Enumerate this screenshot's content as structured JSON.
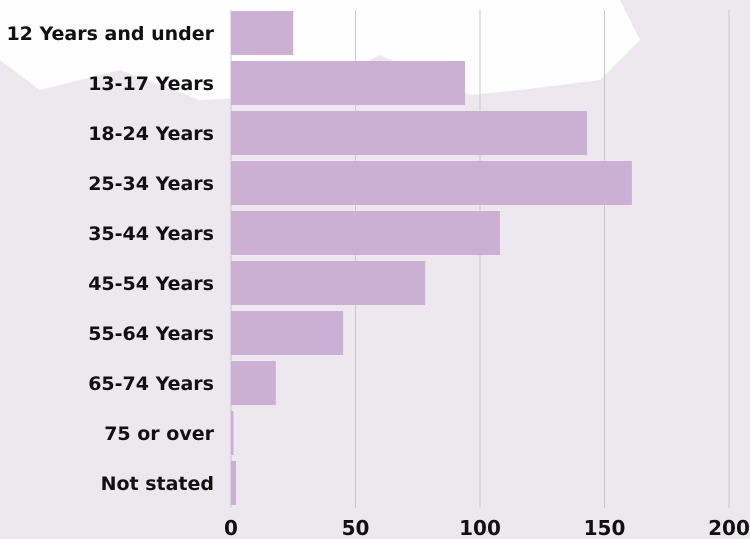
{
  "chart_data": {
    "type": "bar",
    "orientation": "horizontal",
    "categories": [
      "12 Years and under",
      "13-17 Years",
      "18-24 Years",
      "25-34 Years",
      "35-44 Years",
      "45-54 Years",
      "55-64 Years",
      "65-74 Years",
      "75 or over",
      "Not stated"
    ],
    "values": [
      25,
      94,
      143,
      161,
      108,
      78,
      45,
      18,
      1,
      2
    ],
    "xlim": [
      0,
      200
    ],
    "xticks": [
      "0",
      "50",
      "100",
      "150",
      "200"
    ],
    "grid": "vertical",
    "colors": {
      "bar": "#cbb0d3",
      "grid": "#c9c9c9",
      "background_light": "#ffffff",
      "background_tint": "#ece8ee",
      "text": "#111111"
    }
  }
}
